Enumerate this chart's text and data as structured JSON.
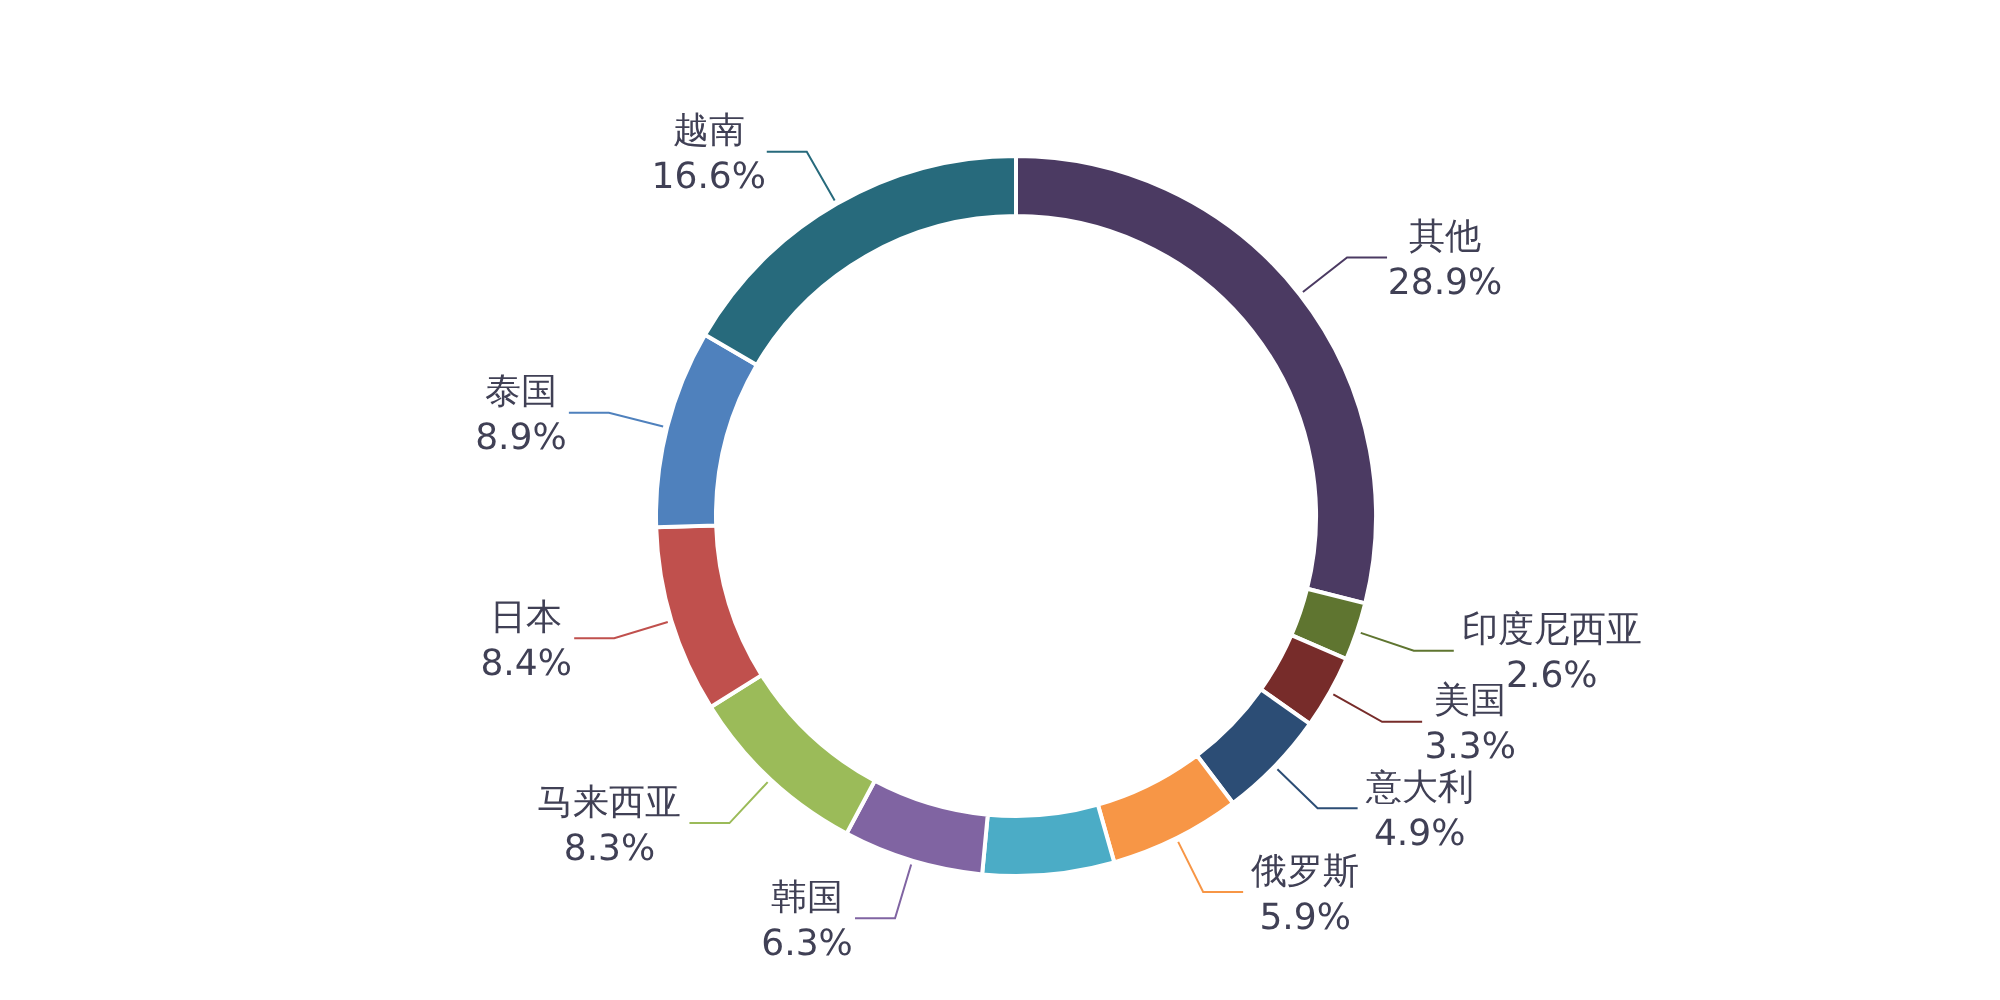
{
  "chart_data": {
    "type": "donut",
    "categories": [
      "其他",
      "印度尼西亚",
      "美国",
      "意大利",
      "俄罗斯",
      null,
      "韩国",
      "马来西亚",
      "日本",
      "泰国",
      "越南"
    ],
    "values": [
      28.9,
      2.6,
      3.3,
      4.9,
      5.9,
      5.9,
      6.3,
      8.3,
      8.4,
      8.9,
      16.6
    ],
    "colors": [
      "#4b3a62",
      "#5f7530",
      "#772c2a",
      "#2c4d75",
      "#f79646",
      "#4bacc6",
      "#8064a2",
      "#9bbb59",
      "#c0504d",
      "#4f81bd",
      "#276a7c"
    ],
    "value_labels": [
      "28.9%",
      "2.6%",
      "3.3%",
      "4.9%",
      "5.9%",
      null,
      "6.3%",
      "8.3%",
      "8.4%",
      "8.9%",
      "16.6%"
    ]
  }
}
